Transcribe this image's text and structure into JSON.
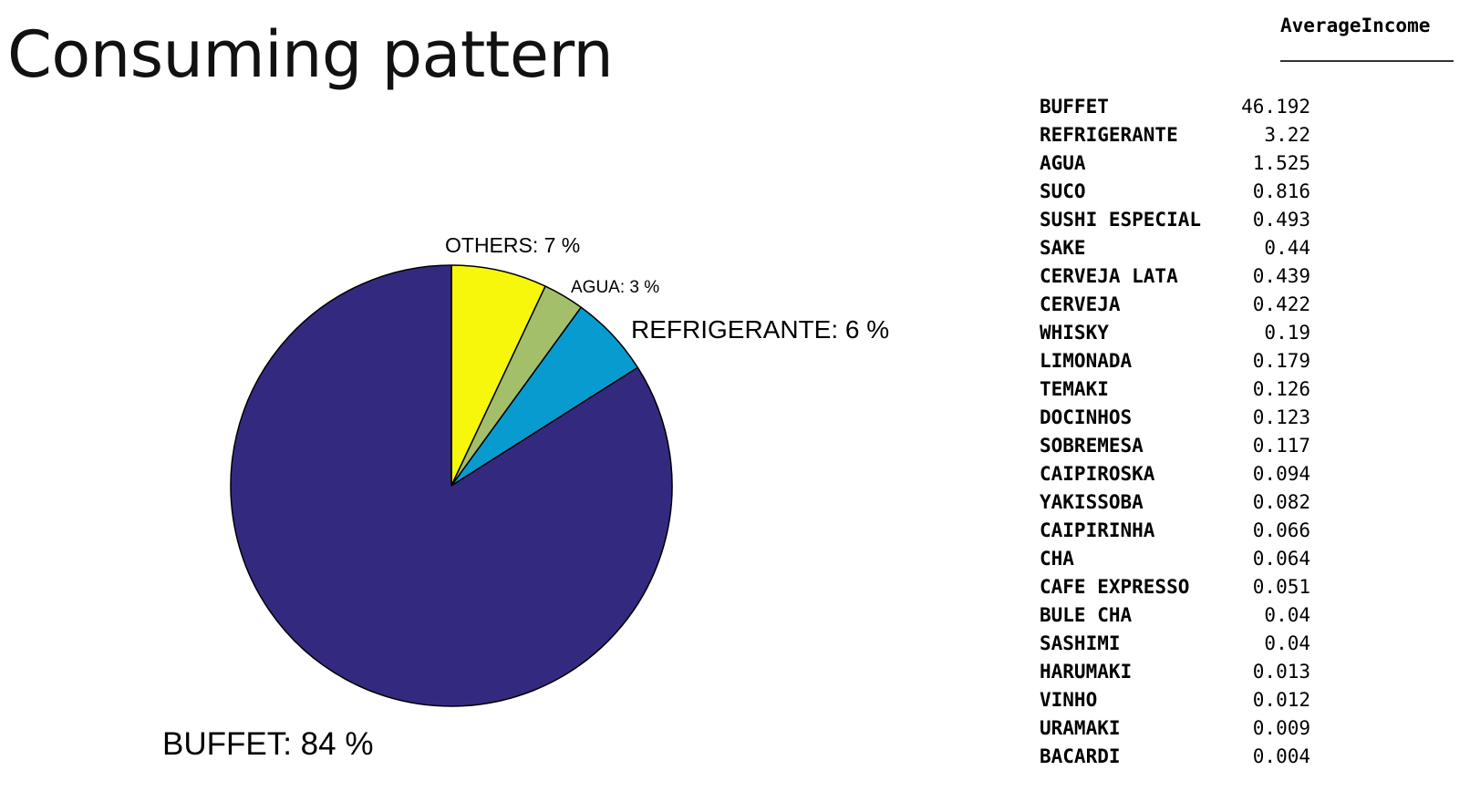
{
  "slide": {
    "title": "Consuming pattern"
  },
  "chart_data": [
    {
      "type": "pie",
      "title": "",
      "slices": [
        {
          "label": "BUFFET: 84 %",
          "category": "BUFFET",
          "value": 84,
          "color": "#332a80"
        },
        {
          "label": "REFRIGERANTE: 6 %",
          "category": "REFRIGERANTE",
          "value": 6,
          "color": "#079bd0"
        },
        {
          "label": "AGUA: 3 %",
          "category": "AGUA",
          "value": 3,
          "color": "#a3bf6a"
        },
        {
          "label": "OTHERS: 7 %",
          "category": "OTHERS",
          "value": 7,
          "color": "#f7f70b"
        }
      ],
      "start_angle": "top",
      "direction": "counterclockwise"
    },
    {
      "type": "table",
      "columns": [
        "",
        "AverageIncome"
      ],
      "rows": [
        {
          "name": "BUFFET",
          "value": "46.192"
        },
        {
          "name": "REFRIGERANTE",
          "value": "3.22"
        },
        {
          "name": "AGUA",
          "value": "1.525"
        },
        {
          "name": "SUCO",
          "value": "0.816"
        },
        {
          "name": "SUSHI ESPECIAL",
          "value": "0.493"
        },
        {
          "name": "SAKE",
          "value": "0.44"
        },
        {
          "name": "CERVEJA LATA",
          "value": "0.439"
        },
        {
          "name": "CERVEJA",
          "value": "0.422"
        },
        {
          "name": "WHISKY",
          "value": "0.19"
        },
        {
          "name": "LIMONADA",
          "value": "0.179"
        },
        {
          "name": "TEMAKI",
          "value": "0.126"
        },
        {
          "name": "DOCINHOS",
          "value": "0.123"
        },
        {
          "name": "SOBREMESA",
          "value": "0.117"
        },
        {
          "name": "CAIPIROSKA",
          "value": "0.094"
        },
        {
          "name": "YAKISSOBA",
          "value": "0.082"
        },
        {
          "name": "CAIPIRINHA",
          "value": "0.066"
        },
        {
          "name": "CHA",
          "value": "0.064"
        },
        {
          "name": "CAFE EXPRESSO",
          "value": "0.051"
        },
        {
          "name": "BULE CHA",
          "value": "0.04"
        },
        {
          "name": "SASHIMI",
          "value": "0.04"
        },
        {
          "name": "HARUMAKI",
          "value": "0.013"
        },
        {
          "name": "VINHO",
          "value": "0.012"
        },
        {
          "name": "URAMAKI",
          "value": "0.009"
        },
        {
          "name": "BACARDI",
          "value": "0.004"
        }
      ]
    }
  ]
}
